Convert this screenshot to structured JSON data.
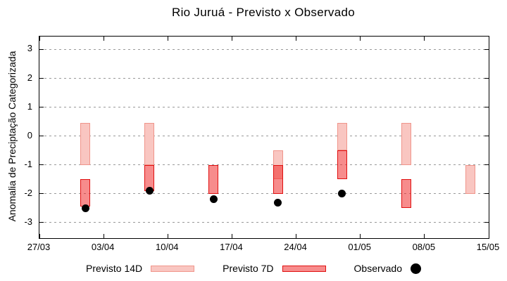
{
  "chart_data": {
    "type": "bar",
    "title": "Rio Juruá - Previsto x Observado",
    "ylabel": "Anomalia de Preciptação Categorizada",
    "xlabel": "",
    "grid": {
      "show": true,
      "color": "#999999",
      "style": "dashed"
    },
    "x_axis": {
      "range_days": [
        0,
        49
      ],
      "tick_days": [
        0,
        7,
        14,
        21,
        28,
        35,
        42,
        49
      ],
      "tick_labels": [
        "27/03",
        "03/04",
        "10/04",
        "17/04",
        "24/04",
        "01/05",
        "08/05",
        "15/05"
      ]
    },
    "y_axis": {
      "range": [
        -3.54,
        3.45
      ],
      "ticks": [
        -3,
        -2,
        -1,
        0,
        1,
        2,
        3
      ],
      "tick_labels": [
        "-3",
        "-2",
        "-1",
        "0",
        "1",
        "2",
        "3"
      ]
    },
    "legend_position": "bottom-center",
    "series": [
      {
        "name": "Previsto 14D",
        "type": "range_bar",
        "fill": "#f9c6c1",
        "border": "#f0958b",
        "points": [
          {
            "date": "01/04",
            "day": 5,
            "low": -1.0,
            "high": 0.45
          },
          {
            "date": "08/04",
            "day": 12,
            "low": -1.0,
            "high": 0.45
          },
          {
            "date": "22/04",
            "day": 26,
            "low": -1.5,
            "high": -0.5
          },
          {
            "date": "29/04",
            "day": 33,
            "low": -0.5,
            "high": 0.45
          },
          {
            "date": "06/05",
            "day": 40,
            "low": -1.0,
            "high": 0.45
          },
          {
            "date": "13/05",
            "day": 47,
            "low": -2.0,
            "high": -1.0
          }
        ]
      },
      {
        "name": "Previsto 7D",
        "type": "range_bar",
        "fill": "rgba(240,35,35,0.52)",
        "border": "#e01010",
        "points": [
          {
            "date": "01/04",
            "day": 5,
            "low": -2.45,
            "high": -1.5
          },
          {
            "date": "08/04",
            "day": 12,
            "low": -1.9,
            "high": -1.0
          },
          {
            "date": "15/04",
            "day": 19,
            "low": -2.0,
            "high": -1.0
          },
          {
            "date": "22/04",
            "day": 26,
            "low": -2.0,
            "high": -1.0
          },
          {
            "date": "29/04",
            "day": 33,
            "low": -1.5,
            "high": -0.5
          },
          {
            "date": "06/05",
            "day": 40,
            "low": -2.5,
            "high": -1.5
          }
        ]
      },
      {
        "name": "Observado",
        "type": "scatter",
        "color": "#000000",
        "points": [
          {
            "date": "01/04",
            "day": 5,
            "value": -2.5
          },
          {
            "date": "08/04",
            "day": 12,
            "value": -1.9
          },
          {
            "date": "15/04",
            "day": 19,
            "value": -2.2
          },
          {
            "date": "22/04",
            "day": 26,
            "value": -2.3
          },
          {
            "date": "29/04",
            "day": 33,
            "value": -2.0
          }
        ]
      }
    ]
  }
}
